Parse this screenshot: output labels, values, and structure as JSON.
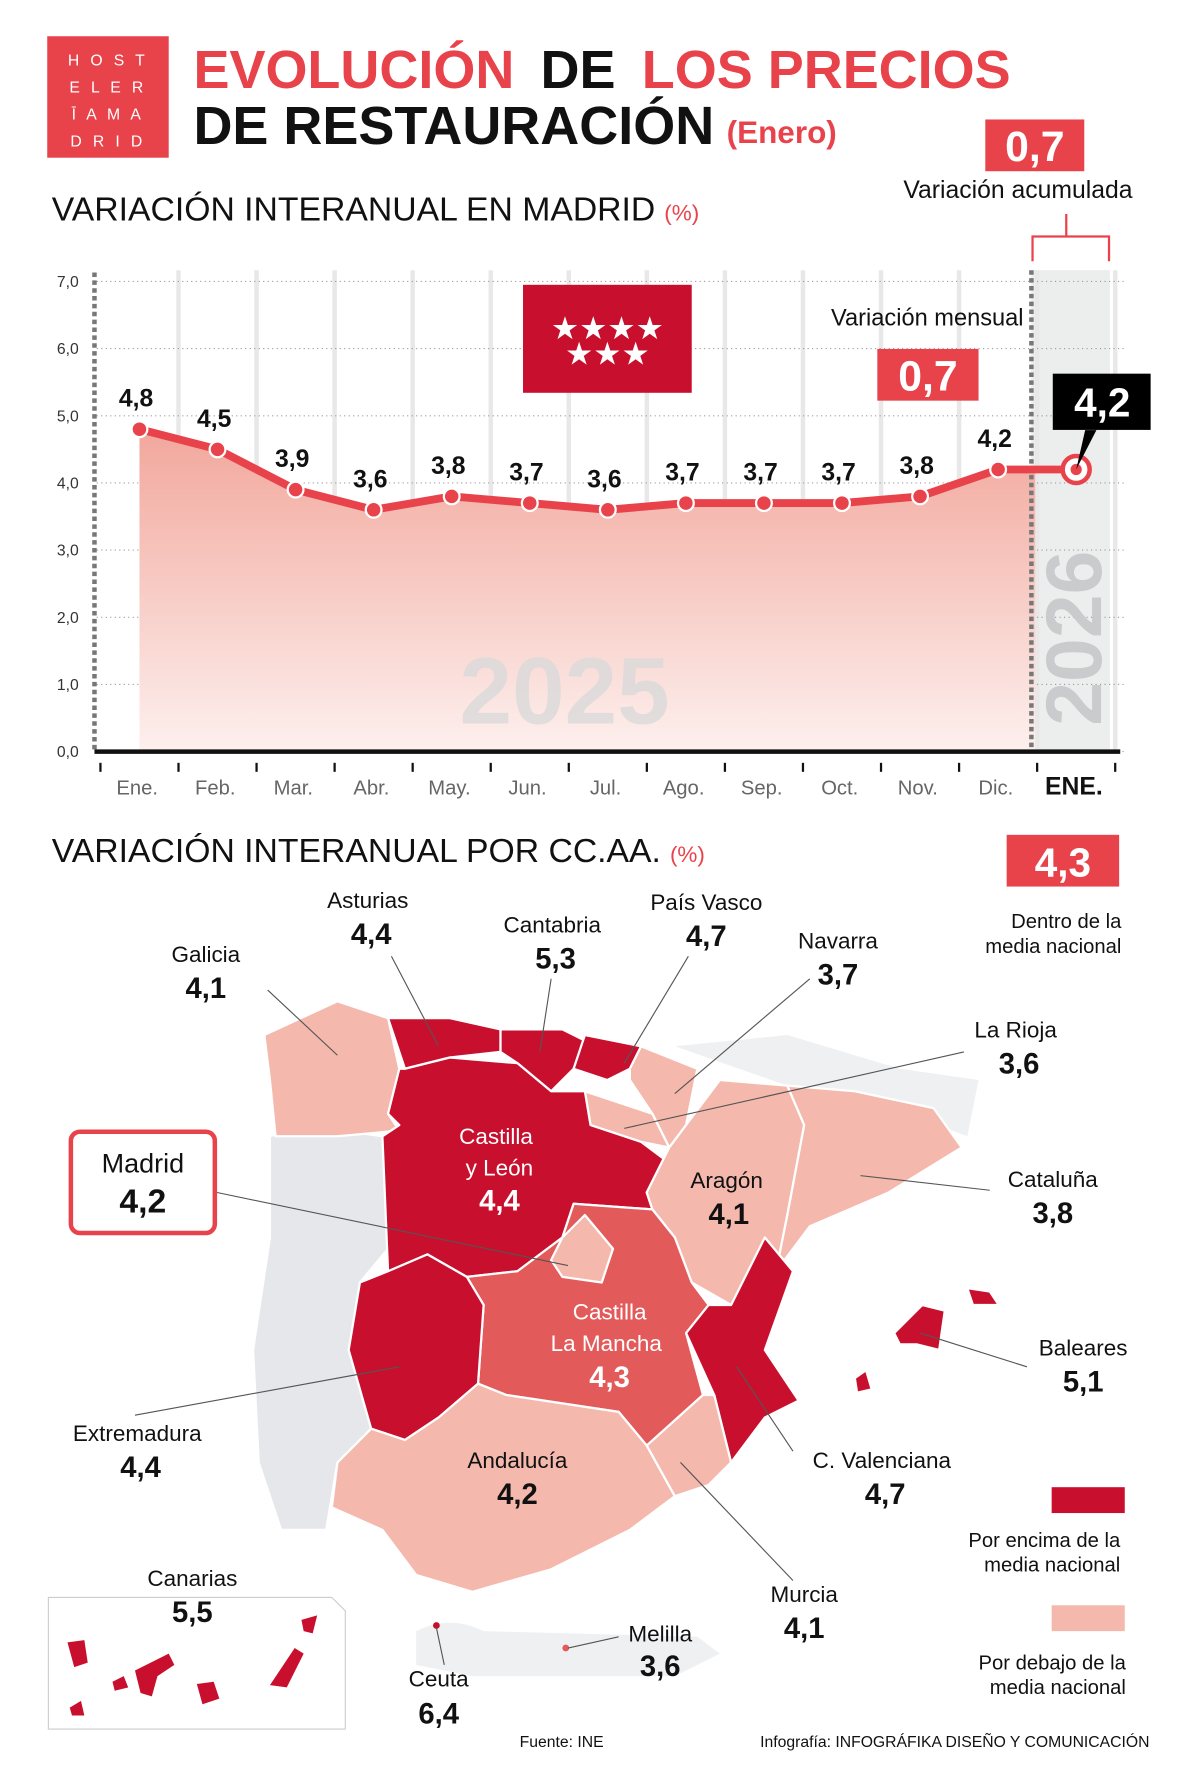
{
  "colors": {
    "accent": "#e8434b",
    "dark": "#c8102e",
    "medium": "#e35a5a",
    "light": "#f4b8ad",
    "grey_land": "#e6e7ea",
    "black": "#111111"
  },
  "logo": {
    "lines": [
      "H O S T",
      "E L E R",
      "Ī A M A",
      "D R I D"
    ]
  },
  "title": {
    "part1": "EVOLUCIÓN",
    "part2": "DE",
    "part3": "LOS PRECIOS",
    "line2": "DE RESTAURACIÓN",
    "month": "(Enero)"
  },
  "accumulated": {
    "value": "0,7",
    "label": "Variación acumulada"
  },
  "madrid_section": {
    "title": "VARIACIÓN INTERANUAL EN MADRID",
    "unit": "(%)",
    "monthly_label": "Variación mensual",
    "monthly_value": "0,7",
    "flag_icon": "madrid-flag-seven-stars",
    "stars": "★★★★",
    "stars2": "★★★"
  },
  "chart_data": {
    "type": "area",
    "categories": [
      "Ene.",
      "Feb.",
      "Mar.",
      "Abr.",
      "May.",
      "Jun.",
      "Jul.",
      "Ago.",
      "Sep.",
      "Oct.",
      "Nov.",
      "Dic.",
      "ENE."
    ],
    "values": [
      4.8,
      4.5,
      3.9,
      3.6,
      3.8,
      3.7,
      3.6,
      3.7,
      3.7,
      3.7,
      3.8,
      4.2,
      4.2
    ],
    "data_labels": [
      "4,8",
      "4,5",
      "3,9",
      "3,6",
      "3,8",
      "3,7",
      "3,6",
      "3,7",
      "3,7",
      "3,7",
      "3,8",
      "4,2",
      "4,2"
    ],
    "yticks": [
      "0,0",
      "1,0",
      "2,0",
      "3,0",
      "4,0",
      "5,0",
      "6,0",
      "7,0"
    ],
    "ylim": [
      0,
      7
    ],
    "grid": true,
    "year_labels": [
      "2025",
      "2026"
    ]
  },
  "ccaa_section": {
    "title": "VARIACIÓN INTERANUAL POR CC.AA.",
    "unit": "(%)",
    "national_value": "4,3",
    "national_label1": "Dentro de la",
    "national_label2": "media nacional"
  },
  "regions": {
    "galicia": {
      "name": "Galicia",
      "value": "4,1"
    },
    "asturias": {
      "name": "Asturias",
      "value": "4,4"
    },
    "cantabria": {
      "name": "Cantabria",
      "value": "5,3"
    },
    "pais_vasco": {
      "name": "País Vasco",
      "value": "4,7"
    },
    "navarra": {
      "name": "Navarra",
      "value": "3,7"
    },
    "la_rioja": {
      "name": "La Rioja",
      "value": "3,6"
    },
    "cataluna": {
      "name": "Cataluña",
      "value": "3,8"
    },
    "aragon": {
      "name": "Aragón",
      "value": "4,1"
    },
    "castilla_leon": {
      "name1": "Castilla",
      "name2": "y León",
      "value": "4,4"
    },
    "madrid": {
      "name": "Madrid",
      "value": "4,2"
    },
    "castilla_mancha": {
      "name1": "Castilla",
      "name2": "La Mancha",
      "value": "4,3"
    },
    "extremadura": {
      "name": "Extremadura",
      "value": "4,4"
    },
    "baleares": {
      "name": "Baleares",
      "value": "5,1"
    },
    "valenciana": {
      "name": "C. Valenciana",
      "value": "4,7"
    },
    "andalucia": {
      "name": "Andalucía",
      "value": "4,2"
    },
    "murcia": {
      "name": "Murcia",
      "value": "4,1"
    },
    "canarias": {
      "name": "Canarias",
      "value": "5,5"
    },
    "ceuta": {
      "name": "Ceuta",
      "value": "6,4"
    },
    "melilla": {
      "name": "Melilla",
      "value": "3,6"
    }
  },
  "legend": {
    "above1": "Por encima de la",
    "above2": "media nacional",
    "below1": "Por debajo de la",
    "below2": "media nacional"
  },
  "footer": {
    "source": "Fuente: INE",
    "credit": "Infografía: INFOGRÁFIKA DISEÑO Y COMUNICACIÓN"
  }
}
